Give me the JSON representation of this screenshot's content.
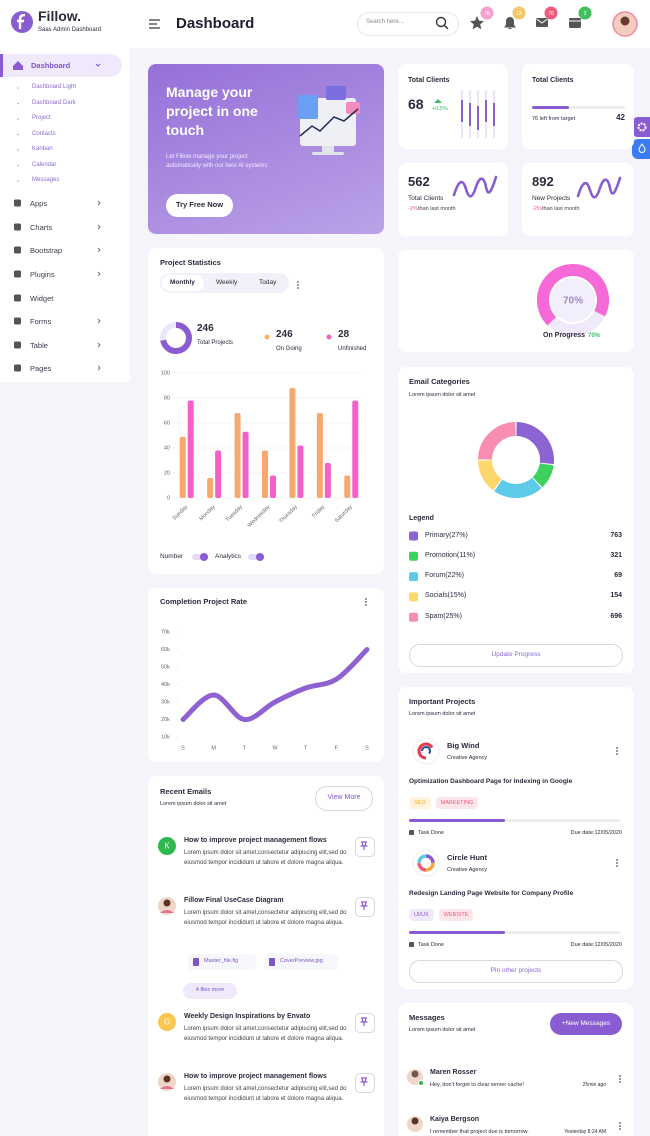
{
  "header": {
    "brand": "Fillow.",
    "tagline": "Saas Admin Dashboard",
    "title": "Dashboard",
    "search_placeholder": "Search here...",
    "badges": [
      "76",
      "12",
      "76",
      "2"
    ]
  },
  "sidebar": {
    "active": "Dashboard",
    "submenu": [
      "Dashboard Light",
      "Dashboard Dark",
      "Project",
      "Contacts",
      "Kanban",
      "Calendar",
      "Messages"
    ],
    "items": [
      "Apps",
      "Charts",
      "Bootstrap",
      "Plugins",
      "Widget",
      "Forms",
      "Table",
      "Pages"
    ]
  },
  "banner": {
    "title": "Manage your project in one touch",
    "text": "Let Fillow manage your project automatically with our best AI systems",
    "button": "Try Free Now"
  },
  "stats": [
    {
      "title": "Total Clients",
      "value": 68,
      "change": "+0.5%"
    },
    {
      "title": "Total Clients",
      "note": "76 left from target",
      "value": 42
    },
    {
      "value": 562,
      "title": "Total Clients",
      "change": "-2%",
      "note": "than last month"
    },
    {
      "value": 892,
      "title": "New Projects",
      "change": "-2%",
      "note": "than last month"
    }
  ],
  "progress": {
    "value": 70,
    "value_label": "70%",
    "caption": "On Progress",
    "caption_value": "70%"
  },
  "project_statistics": {
    "title": "Project Statistics",
    "tabs": [
      "Monthly",
      "Weekly",
      "Today"
    ],
    "summary": [
      {
        "value": 246,
        "label": "Total Projects"
      },
      {
        "value": 246,
        "label": "On Going"
      },
      {
        "value": 28,
        "label": "Unfinished"
      }
    ],
    "chart": {
      "type": "bar",
      "categories": [
        "Sunday",
        "Monday",
        "Tuesday",
        "Wednesday",
        "Thursday",
        "Friday",
        "Saturday"
      ],
      "series": [
        {
          "name": "Number",
          "color": "#f7a86f",
          "values": [
            49,
            16,
            68,
            38,
            88,
            68,
            18
          ]
        },
        {
          "name": "Analytics",
          "color": "#f560c8",
          "values": [
            78,
            38,
            53,
            18,
            42,
            28,
            78
          ]
        }
      ],
      "ylim": [
        0,
        100
      ],
      "yticks": [
        0,
        20,
        40,
        60,
        80,
        100
      ],
      "grid": true
    }
  },
  "completion": {
    "title": "Completion Project Rate",
    "chart": {
      "type": "line",
      "categories": [
        "S",
        "M",
        "T",
        "W",
        "T",
        "F",
        "S"
      ],
      "series": [
        {
          "color": "#8e62d0",
          "values": [
            20000,
            34000,
            20000,
            30000,
            38000,
            43000,
            60000
          ]
        }
      ],
      "ylim": [
        10000,
        70000
      ],
      "yticks": [
        {
          "value": 10000,
          "label": "10k"
        },
        {
          "value": 20000,
          "label": "20k"
        },
        {
          "value": 30000,
          "label": "30k"
        },
        {
          "value": 40000,
          "label": "40k"
        },
        {
          "value": 50000,
          "label": "50k"
        },
        {
          "value": 60000,
          "label": "60k"
        },
        {
          "value": 70000,
          "label": "70k"
        }
      ]
    }
  },
  "recent_emails": {
    "title": "Recent Emails",
    "subtitle": "Lorem ipsum dolor sit amet",
    "button": "View More",
    "emails": [
      {
        "avatar": "K",
        "subject": "How to improve project management flows",
        "body": "Lorem ipsum dolor sit amet,consectetur adipiscing elit,sed do eiusmod tempor incididunt ut labore et dolore magna aliqua."
      },
      {
        "subject": "Fillow Final UseCase Diagram",
        "body": "Lorem ipsum dolor sit amet,consectetur adipiscing elit,sed do eiusmod tempor incididunt ut labore et dolore magna aliqua.",
        "attachments": [
          "Master_file.fig",
          "CoverPreview.jpg"
        ],
        "more": "4 files more"
      },
      {
        "avatar": "G",
        "subject": "Weekly Design Inspirations by Envato",
        "body": "Lorem ipsum dolor sit amet,consectetur adipiscing elit,sed do eiusmod tempor incididunt ut labore et dolore magna aliqua."
      },
      {
        "subject": "How to improve project management flows",
        "body": "Lorem ipsum dolor sit amet,consectetur adipiscing elit,sed do eiusmod tempor incididunt ut labore et dolore magna aliqua."
      }
    ]
  },
  "email_categories": {
    "title": "Email Categories",
    "subtitle": "Lorem ipsum dolor sit amet",
    "legend_title": "Legend",
    "chart": {
      "type": "donut",
      "items": [
        {
          "label": "Primary(27%)",
          "value": 27,
          "count": 763,
          "color": "#8b63d3"
        },
        {
          "label": "Promotion(11%)",
          "value": 11,
          "count": 321,
          "color": "#3cd25d"
        },
        {
          "label": "Forum(22%)",
          "value": 22,
          "count": 69,
          "color": "#5ccbe9"
        },
        {
          "label": "Socials(15%)",
          "value": 15,
          "count": 154,
          "color": "#fdd76b"
        },
        {
          "label": "Spam(25%)",
          "value": 25,
          "count": 696,
          "color": "#f88eaf"
        }
      ]
    },
    "button": "Update Progress"
  },
  "important_projects": {
    "title": "Important Projects",
    "subtitle": "Lorem ipsum dolor sit amet",
    "projects": [
      {
        "name": "Big Wind",
        "company": "Creative Agency",
        "task": "Optimization Dashboard Page for Indexing in Google",
        "tags": [
          "SEO",
          "MARKETING"
        ],
        "status": "Task Done",
        "due": "Due date:12/05/2020"
      },
      {
        "name": "Circle Hunt",
        "company": "Creative Agency",
        "task": "Redesign Landing Page Website for Company Profile",
        "tags": [
          "UI/UX",
          "WEBSITE"
        ],
        "status": "Task Done",
        "due": "Due date:12/05/2020"
      }
    ],
    "button": "Pin other projects"
  },
  "messages": {
    "title": "Messages",
    "subtitle": "Lorem ipsum dolor sit amet",
    "button": "+New Messages",
    "items": [
      {
        "name": "Maren Rosser",
        "text": "Hey, don't forget to clear server cache!",
        "time": "25min ago"
      },
      {
        "name": "Kaiya Bergson",
        "text": "I remember that project due is tomorrow.",
        "time": "Yesterday 8:24 AM"
      }
    ]
  }
}
